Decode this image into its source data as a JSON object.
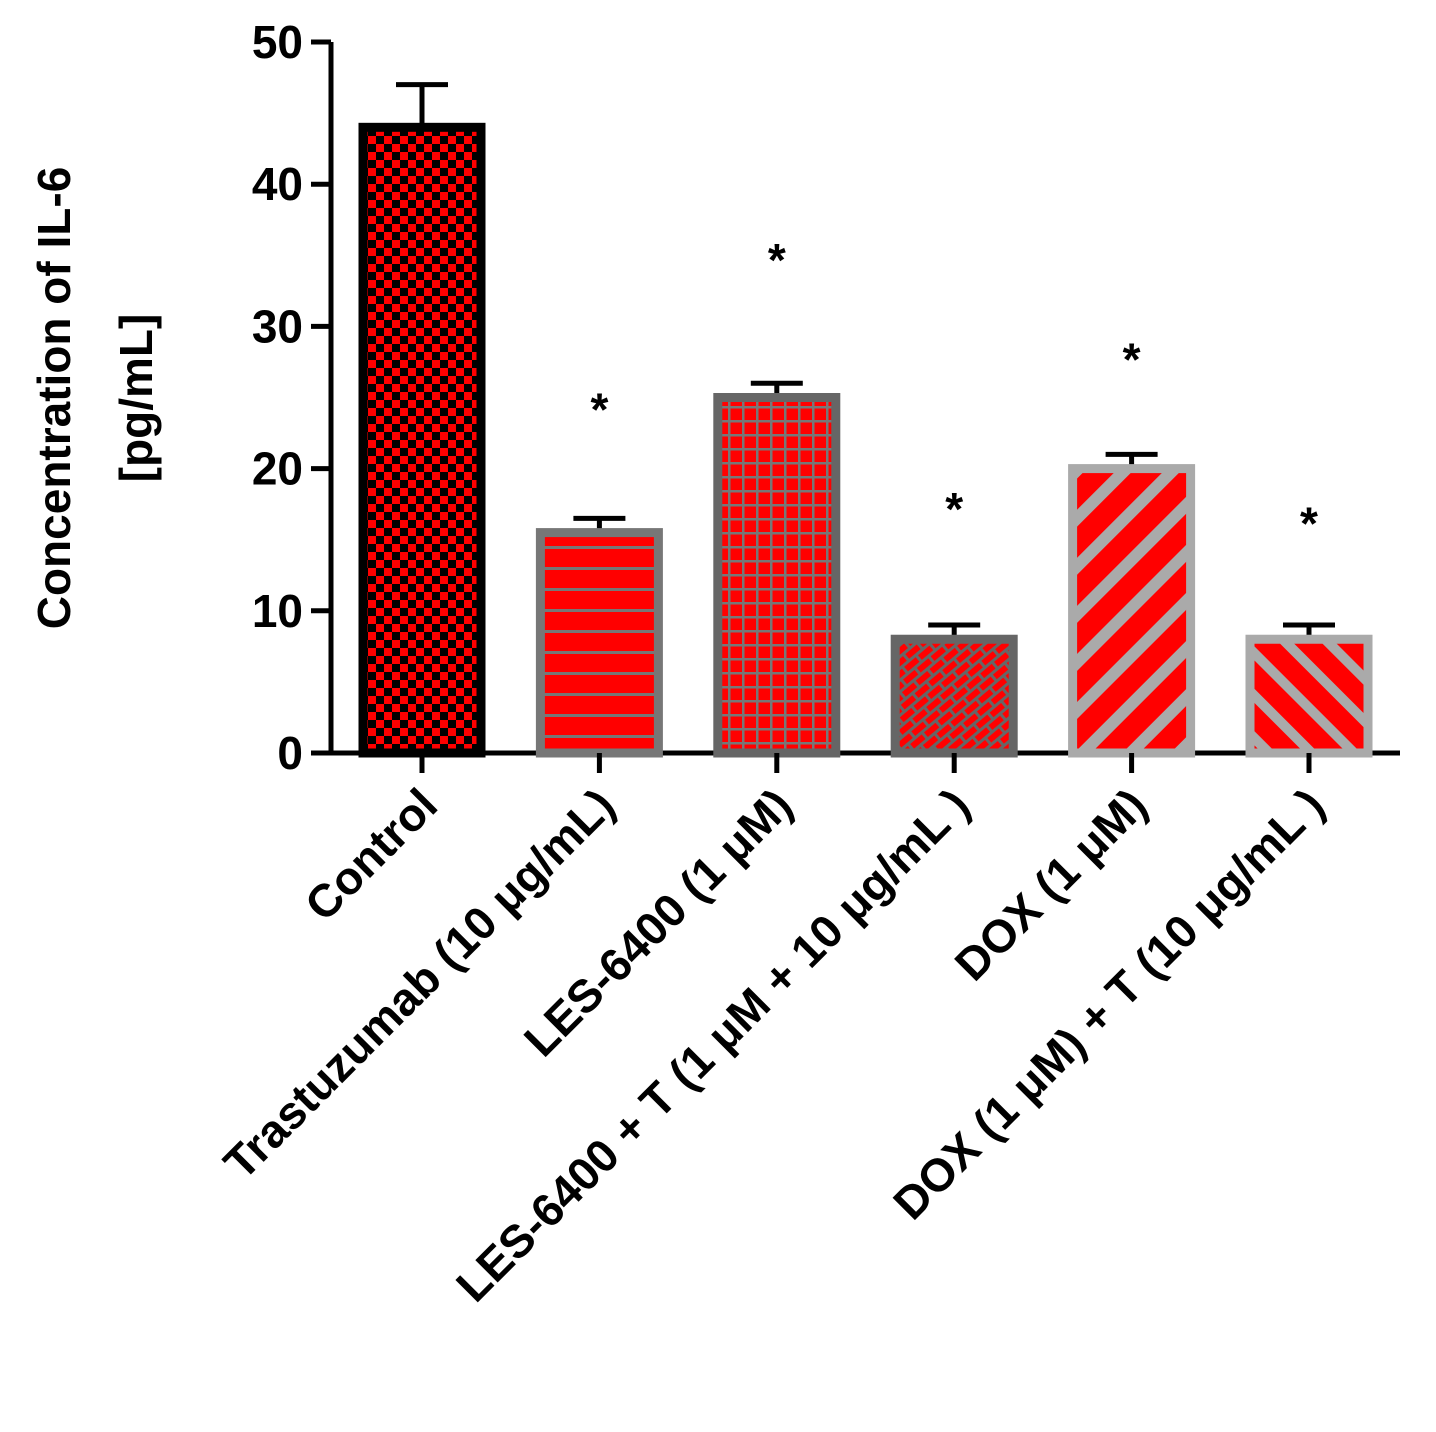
{
  "chart_data": {
    "type": "bar",
    "title": "",
    "xlabel": "",
    "ylabel_lines": [
      "Concentration of IL-6",
      "[pg/mL]"
    ],
    "ylim": [
      0,
      50
    ],
    "yticks": [
      "0",
      "10",
      "20",
      "30",
      "40",
      "50"
    ],
    "categories": [
      "Control",
      "Trastuzumab (10 μg/mL)",
      "LES-6400 (1 μM)",
      "LES-6400 + T (1 μM + 10 μg/mL )",
      "DOX  (1 μM)",
      "DOX (1 μM) + T (10 μg/mL )"
    ],
    "values": [
      44,
      15.5,
      25,
      8,
      20,
      8
    ],
    "errors": [
      3,
      1,
      1,
      1,
      1,
      1
    ],
    "significance": [
      "",
      "*",
      "*",
      "*",
      "*",
      "*"
    ],
    "significance_value": [
      null,
      25,
      35.5,
      18,
      28.5,
      17
    ],
    "patterns": [
      "checker",
      "hlines",
      "grid",
      "brick",
      "diag-down",
      "diag-up"
    ],
    "colors": {
      "fill": "#ff0000",
      "checker": "#000000",
      "dark_border": "#666666",
      "light_border": "#999999",
      "axis": "#000000"
    }
  }
}
